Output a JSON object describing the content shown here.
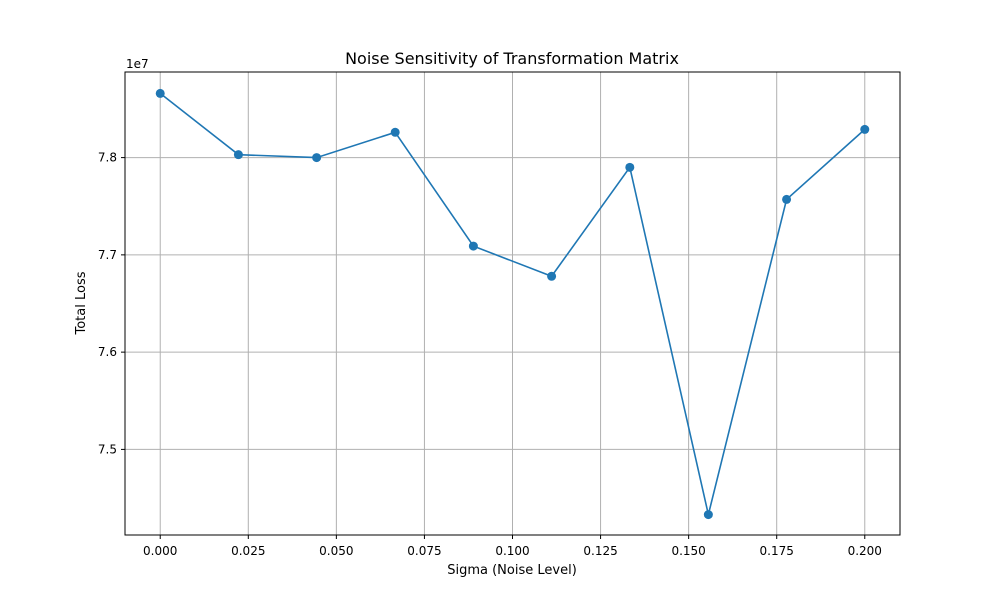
{
  "chart_data": {
    "type": "line",
    "title": "Noise Sensitivity of Transformation Matrix",
    "xlabel": "Sigma (Noise Level)",
    "ylabel": "Total Loss",
    "y_offset_label": "1e7",
    "xlim": [
      -0.01,
      0.21
    ],
    "ylim": [
      7.412,
      7.888
    ],
    "x_ticks": [
      0.0,
      0.025,
      0.05,
      0.075,
      0.1,
      0.125,
      0.15,
      0.175,
      0.2
    ],
    "x_tick_labels": [
      "0.000",
      "0.025",
      "0.050",
      "0.075",
      "0.100",
      "0.125",
      "0.150",
      "0.175",
      "0.200"
    ],
    "y_ticks": [
      7.5,
      7.6,
      7.7,
      7.8
    ],
    "y_tick_labels": [
      "7.5",
      "7.6",
      "7.7",
      "7.8"
    ],
    "grid": true,
    "series": [
      {
        "x": [
          0.0,
          0.0222,
          0.0444,
          0.0667,
          0.0889,
          0.1111,
          0.1333,
          0.1556,
          0.1778,
          0.2
        ],
        "y": [
          7.866,
          7.803,
          7.8,
          7.826,
          7.709,
          7.678,
          7.79,
          7.433,
          7.757,
          7.829
        ],
        "color": "#1f77b4",
        "marker": "circle"
      }
    ]
  }
}
